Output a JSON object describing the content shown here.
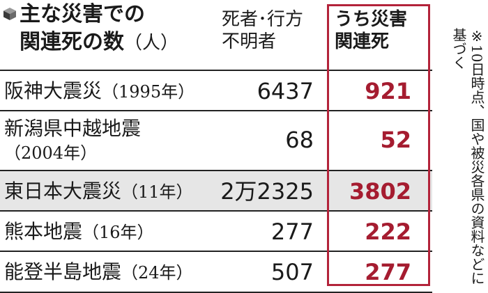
{
  "chart_data": {
    "type": "table",
    "title": "主な災害での関連死の数",
    "title_line1": "主な災害での",
    "title_line2": "関連死の数",
    "title_unit": "（人）",
    "columns": [
      "死者・行方不明者",
      "うち災害関連死"
    ],
    "column_labels": {
      "deaths_line1": "死者･行方",
      "deaths_line2": "不明者",
      "related_line1": "うち災害",
      "related_line2": "関連死"
    },
    "rows": [
      {
        "name": "阪神大震災",
        "year": "（1995年）",
        "deaths": "6437",
        "related": "921",
        "deaths_value": 6437,
        "related_value": 921
      },
      {
        "name": "新潟県中越地震",
        "year": "（2004年）",
        "deaths": "68",
        "related": "52",
        "deaths_value": 68,
        "related_value": 52
      },
      {
        "name": "東日本大震災",
        "year": "（11年）",
        "deaths": "2万2325",
        "related": "3802",
        "deaths_value": 22325,
        "related_value": 3802
      },
      {
        "name": "熊本地震",
        "year": "（16年）",
        "deaths": "277",
        "related": "222",
        "deaths_value": 277,
        "related_value": 222
      },
      {
        "name": "能登半島地震",
        "year": "（24年）",
        "deaths": "507",
        "related": "277",
        "deaths_value": 507,
        "related_value": 277
      }
    ],
    "footnote": "※10日時点、国や被災各県の資料などに基づく"
  },
  "colors": {
    "accent": "#a51c30",
    "frame": "#b3233a",
    "shade": "#e6e6e6"
  },
  "icons": {
    "title": "cube-icon"
  }
}
